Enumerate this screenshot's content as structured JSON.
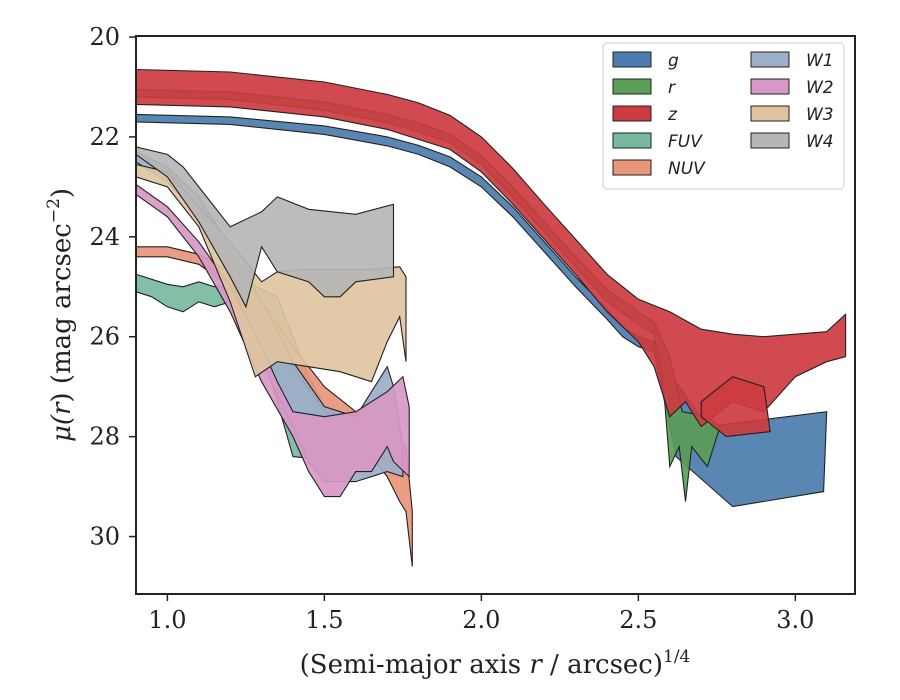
{
  "chart_data": {
    "type": "area",
    "x_label": {
      "pre": "(Semi-major axis ",
      "var": "r",
      "post": " / arcsec)",
      "sup": "1/4"
    },
    "y_label": {
      "pre": "μ(",
      "var": "r",
      "post": ") (mag arcsec",
      "sup": "−2",
      "end": ")"
    },
    "xlim": [
      0.9,
      3.19
    ],
    "ylim": [
      31.15,
      19.98
    ],
    "y_inverted": true,
    "x_ticks": [
      "1.0",
      "1.5",
      "2.0",
      "2.5",
      "3.0"
    ],
    "y_ticks": [
      "20",
      "22",
      "24",
      "26",
      "28",
      "30"
    ],
    "legend": {
      "placement": "top-right",
      "columns": 2
    },
    "series": [
      {
        "name": "g",
        "color": "#4c7cad",
        "upper": [
          [
            0.9,
            21.55
          ],
          [
            1.2,
            21.6
          ],
          [
            1.5,
            21.78
          ],
          [
            1.7,
            22.0
          ],
          [
            1.8,
            22.17
          ],
          [
            1.9,
            22.4
          ],
          [
            2.0,
            22.8
          ],
          [
            2.1,
            23.4
          ],
          [
            2.2,
            24.1
          ],
          [
            2.3,
            24.8
          ],
          [
            2.4,
            25.45
          ],
          [
            2.45,
            25.8
          ],
          [
            2.5,
            26.0
          ],
          [
            2.55,
            26.1
          ]
        ],
        "lower": [
          [
            2.55,
            26.3
          ],
          [
            2.5,
            26.2
          ],
          [
            2.45,
            26.0
          ],
          [
            2.4,
            25.65
          ],
          [
            2.3,
            25.0
          ],
          [
            2.2,
            24.3
          ],
          [
            2.1,
            23.6
          ],
          [
            2.0,
            23.0
          ],
          [
            1.9,
            22.6
          ],
          [
            1.8,
            22.35
          ],
          [
            1.7,
            22.18
          ],
          [
            1.5,
            21.95
          ],
          [
            1.2,
            21.75
          ],
          [
            0.9,
            21.7
          ]
        ],
        "tail": [
          [
            2.55,
            26.1
          ],
          [
            2.62,
            26.9
          ],
          [
            2.72,
            27.8
          ],
          [
            3.1,
            27.5
          ],
          [
            3.09,
            29.1
          ],
          [
            2.8,
            29.4
          ],
          [
            2.62,
            28.4
          ],
          [
            2.55,
            26.3
          ]
        ]
      },
      {
        "name": "r",
        "color": "#5a9e58",
        "upper": [
          [
            0.9,
            21.05
          ],
          [
            1.2,
            21.1
          ],
          [
            1.5,
            21.3
          ],
          [
            1.7,
            21.55
          ],
          [
            1.8,
            21.72
          ],
          [
            1.9,
            21.95
          ],
          [
            2.0,
            22.38
          ],
          [
            2.1,
            23.0
          ],
          [
            2.2,
            23.7
          ],
          [
            2.3,
            24.4
          ],
          [
            2.4,
            25.05
          ],
          [
            2.5,
            25.5
          ],
          [
            2.55,
            25.7
          ]
        ],
        "lower": [
          [
            2.55,
            25.95
          ],
          [
            2.5,
            25.75
          ],
          [
            2.4,
            25.3
          ],
          [
            2.3,
            24.6
          ],
          [
            2.2,
            23.9
          ],
          [
            2.1,
            23.2
          ],
          [
            2.0,
            22.55
          ],
          [
            1.9,
            22.12
          ],
          [
            1.8,
            21.9
          ],
          [
            1.7,
            21.72
          ],
          [
            1.5,
            21.47
          ],
          [
            1.2,
            21.25
          ],
          [
            0.9,
            21.2
          ]
        ],
        "tail": [
          [
            2.55,
            25.7
          ],
          [
            2.6,
            26.4
          ],
          [
            2.64,
            27.5
          ],
          [
            2.72,
            27.6
          ],
          [
            2.76,
            27.8
          ],
          [
            2.72,
            28.6
          ],
          [
            2.67,
            28.2
          ],
          [
            2.65,
            29.3
          ],
          [
            2.63,
            28.2
          ],
          [
            2.6,
            28.6
          ],
          [
            2.58,
            27.0
          ],
          [
            2.55,
            25.95
          ]
        ]
      },
      {
        "name": "z",
        "color": "#cc3b40",
        "upper": [
          [
            0.9,
            20.65
          ],
          [
            1.2,
            20.7
          ],
          [
            1.5,
            20.9
          ],
          [
            1.7,
            21.15
          ],
          [
            1.8,
            21.32
          ],
          [
            1.9,
            21.57
          ],
          [
            2.0,
            22.0
          ],
          [
            2.1,
            22.63
          ],
          [
            2.2,
            23.35
          ],
          [
            2.3,
            24.05
          ],
          [
            2.4,
            24.75
          ],
          [
            2.5,
            25.25
          ],
          [
            2.6,
            25.5
          ],
          [
            2.7,
            25.85
          ],
          [
            2.8,
            25.95
          ],
          [
            2.9,
            26.0
          ],
          [
            3.0,
            25.95
          ],
          [
            3.1,
            25.9
          ],
          [
            3.16,
            25.55
          ]
        ],
        "lower": [
          [
            3.16,
            26.4
          ],
          [
            3.1,
            26.5
          ],
          [
            3.0,
            26.8
          ],
          [
            2.9,
            27.5
          ],
          [
            2.8,
            27.3
          ],
          [
            2.7,
            27.8
          ],
          [
            2.65,
            27.3
          ],
          [
            2.6,
            27.6
          ],
          [
            2.55,
            26.6
          ],
          [
            2.5,
            26.1
          ],
          [
            2.4,
            25.5
          ],
          [
            2.3,
            24.75
          ],
          [
            2.2,
            24.05
          ],
          [
            2.1,
            23.35
          ],
          [
            2.0,
            22.7
          ],
          [
            1.9,
            22.25
          ],
          [
            1.8,
            22.05
          ],
          [
            1.7,
            21.85
          ],
          [
            1.5,
            21.6
          ],
          [
            1.2,
            21.4
          ],
          [
            0.9,
            21.35
          ]
        ],
        "tail": [
          [
            2.7,
            27.3
          ],
          [
            2.8,
            26.8
          ],
          [
            2.9,
            27.0
          ],
          [
            2.92,
            27.9
          ],
          [
            2.78,
            28.0
          ],
          [
            2.7,
            27.6
          ]
        ]
      },
      {
        "name": "FUV",
        "color": "#78b89e",
        "upper": [
          [
            0.9,
            24.75
          ],
          [
            1.0,
            24.95
          ],
          [
            1.05,
            25.0
          ],
          [
            1.1,
            24.9
          ],
          [
            1.15,
            25.0
          ],
          [
            1.25,
            24.9
          ],
          [
            1.35,
            25.2
          ],
          [
            1.45,
            26.8
          ],
          [
            1.55,
            28.0
          ]
        ],
        "lower": [
          [
            1.55,
            28.5
          ],
          [
            1.4,
            28.4
          ],
          [
            1.3,
            26.2
          ],
          [
            1.2,
            25.3
          ],
          [
            1.15,
            25.4
          ],
          [
            1.1,
            25.3
          ],
          [
            1.05,
            25.5
          ],
          [
            1.0,
            25.4
          ],
          [
            0.95,
            25.2
          ],
          [
            0.9,
            25.1
          ]
        ]
      },
      {
        "name": "NUV",
        "color": "#e8957a",
        "upper": [
          [
            0.9,
            24.2
          ],
          [
            1.0,
            24.2
          ],
          [
            1.1,
            24.35
          ],
          [
            1.2,
            24.7
          ],
          [
            1.3,
            25.3
          ],
          [
            1.4,
            26.2
          ],
          [
            1.5,
            27.0
          ],
          [
            1.6,
            27.5
          ],
          [
            1.7,
            27.8
          ],
          [
            1.76,
            28.2
          ],
          [
            1.78,
            29.5
          ]
        ],
        "lower": [
          [
            1.78,
            30.6
          ],
          [
            1.76,
            29.5
          ],
          [
            1.74,
            29.3
          ],
          [
            1.7,
            28.8
          ],
          [
            1.6,
            28.0
          ],
          [
            1.5,
            27.5
          ],
          [
            1.4,
            26.6
          ],
          [
            1.3,
            25.7
          ],
          [
            1.2,
            25.0
          ],
          [
            1.1,
            24.55
          ],
          [
            1.0,
            24.4
          ],
          [
            0.9,
            24.4
          ]
        ]
      },
      {
        "name": "W1",
        "color": "#9daec9",
        "upper": [
          [
            0.9,
            22.3
          ],
          [
            1.0,
            22.6
          ],
          [
            1.1,
            23.2
          ],
          [
            1.2,
            24.2
          ],
          [
            1.3,
            25.3
          ],
          [
            1.4,
            26.5
          ],
          [
            1.5,
            27.4
          ],
          [
            1.6,
            27.6
          ],
          [
            1.7,
            26.6
          ],
          [
            1.72,
            27.0
          ],
          [
            1.75,
            28.2
          ]
        ],
        "lower": [
          [
            1.75,
            28.8
          ],
          [
            1.7,
            28.7
          ],
          [
            1.6,
            28.9
          ],
          [
            1.5,
            28.9
          ],
          [
            1.45,
            28.5
          ],
          [
            1.4,
            27.8
          ],
          [
            1.3,
            26.5
          ],
          [
            1.2,
            24.8
          ],
          [
            1.1,
            23.6
          ],
          [
            1.0,
            22.9
          ],
          [
            0.9,
            22.5
          ]
        ]
      },
      {
        "name": "W2",
        "color": "#d898c6",
        "upper": [
          [
            0.9,
            22.95
          ],
          [
            1.0,
            23.4
          ],
          [
            1.1,
            24.1
          ],
          [
            1.2,
            25.0
          ],
          [
            1.3,
            26.2
          ],
          [
            1.35,
            26.9
          ],
          [
            1.4,
            27.5
          ],
          [
            1.5,
            27.6
          ],
          [
            1.6,
            27.5
          ],
          [
            1.7,
            27.1
          ],
          [
            1.75,
            26.8
          ],
          [
            1.77,
            27.4
          ]
        ],
        "lower": [
          [
            1.77,
            28.8
          ],
          [
            1.72,
            28.5
          ],
          [
            1.7,
            28.2
          ],
          [
            1.65,
            28.7
          ],
          [
            1.6,
            28.7
          ],
          [
            1.55,
            29.2
          ],
          [
            1.5,
            29.2
          ],
          [
            1.45,
            28.7
          ],
          [
            1.4,
            28.0
          ],
          [
            1.3,
            26.9
          ],
          [
            1.2,
            25.5
          ],
          [
            1.1,
            24.4
          ],
          [
            1.0,
            23.6
          ],
          [
            0.9,
            23.15
          ]
        ]
      },
      {
        "name": "W3",
        "color": "#e0c4a0",
        "upper": [
          [
            0.9,
            22.55
          ],
          [
            1.0,
            22.7
          ],
          [
            1.1,
            23.4
          ],
          [
            1.2,
            24.1
          ],
          [
            1.3,
            24.9
          ],
          [
            1.35,
            24.7
          ],
          [
            1.45,
            24.65
          ],
          [
            1.55,
            24.65
          ],
          [
            1.65,
            24.65
          ],
          [
            1.74,
            24.6
          ],
          [
            1.76,
            24.8
          ]
        ],
        "lower": [
          [
            1.76,
            26.5
          ],
          [
            1.74,
            25.6
          ],
          [
            1.7,
            26.1
          ],
          [
            1.65,
            26.9
          ],
          [
            1.55,
            26.7
          ],
          [
            1.45,
            26.6
          ],
          [
            1.35,
            26.5
          ],
          [
            1.28,
            26.8
          ],
          [
            1.2,
            25.3
          ],
          [
            1.1,
            23.8
          ],
          [
            1.0,
            23.0
          ],
          [
            0.9,
            22.8
          ]
        ]
      },
      {
        "name": "W4",
        "color": "#b6b6b6",
        "upper": [
          [
            0.9,
            22.2
          ],
          [
            1.0,
            22.35
          ],
          [
            1.05,
            22.6
          ],
          [
            1.1,
            23.0
          ],
          [
            1.2,
            23.8
          ],
          [
            1.3,
            23.5
          ],
          [
            1.35,
            23.2
          ],
          [
            1.45,
            23.45
          ],
          [
            1.6,
            23.55
          ],
          [
            1.72,
            23.35
          ]
        ],
        "lower": [
          [
            1.72,
            24.8
          ],
          [
            1.6,
            24.9
          ],
          [
            1.55,
            25.2
          ],
          [
            1.5,
            25.2
          ],
          [
            1.45,
            24.9
          ],
          [
            1.35,
            24.7
          ],
          [
            1.3,
            24.2
          ],
          [
            1.25,
            25.4
          ],
          [
            1.2,
            24.8
          ],
          [
            1.1,
            23.7
          ],
          [
            1.0,
            22.8
          ],
          [
            0.9,
            22.35
          ]
        ]
      }
    ]
  }
}
